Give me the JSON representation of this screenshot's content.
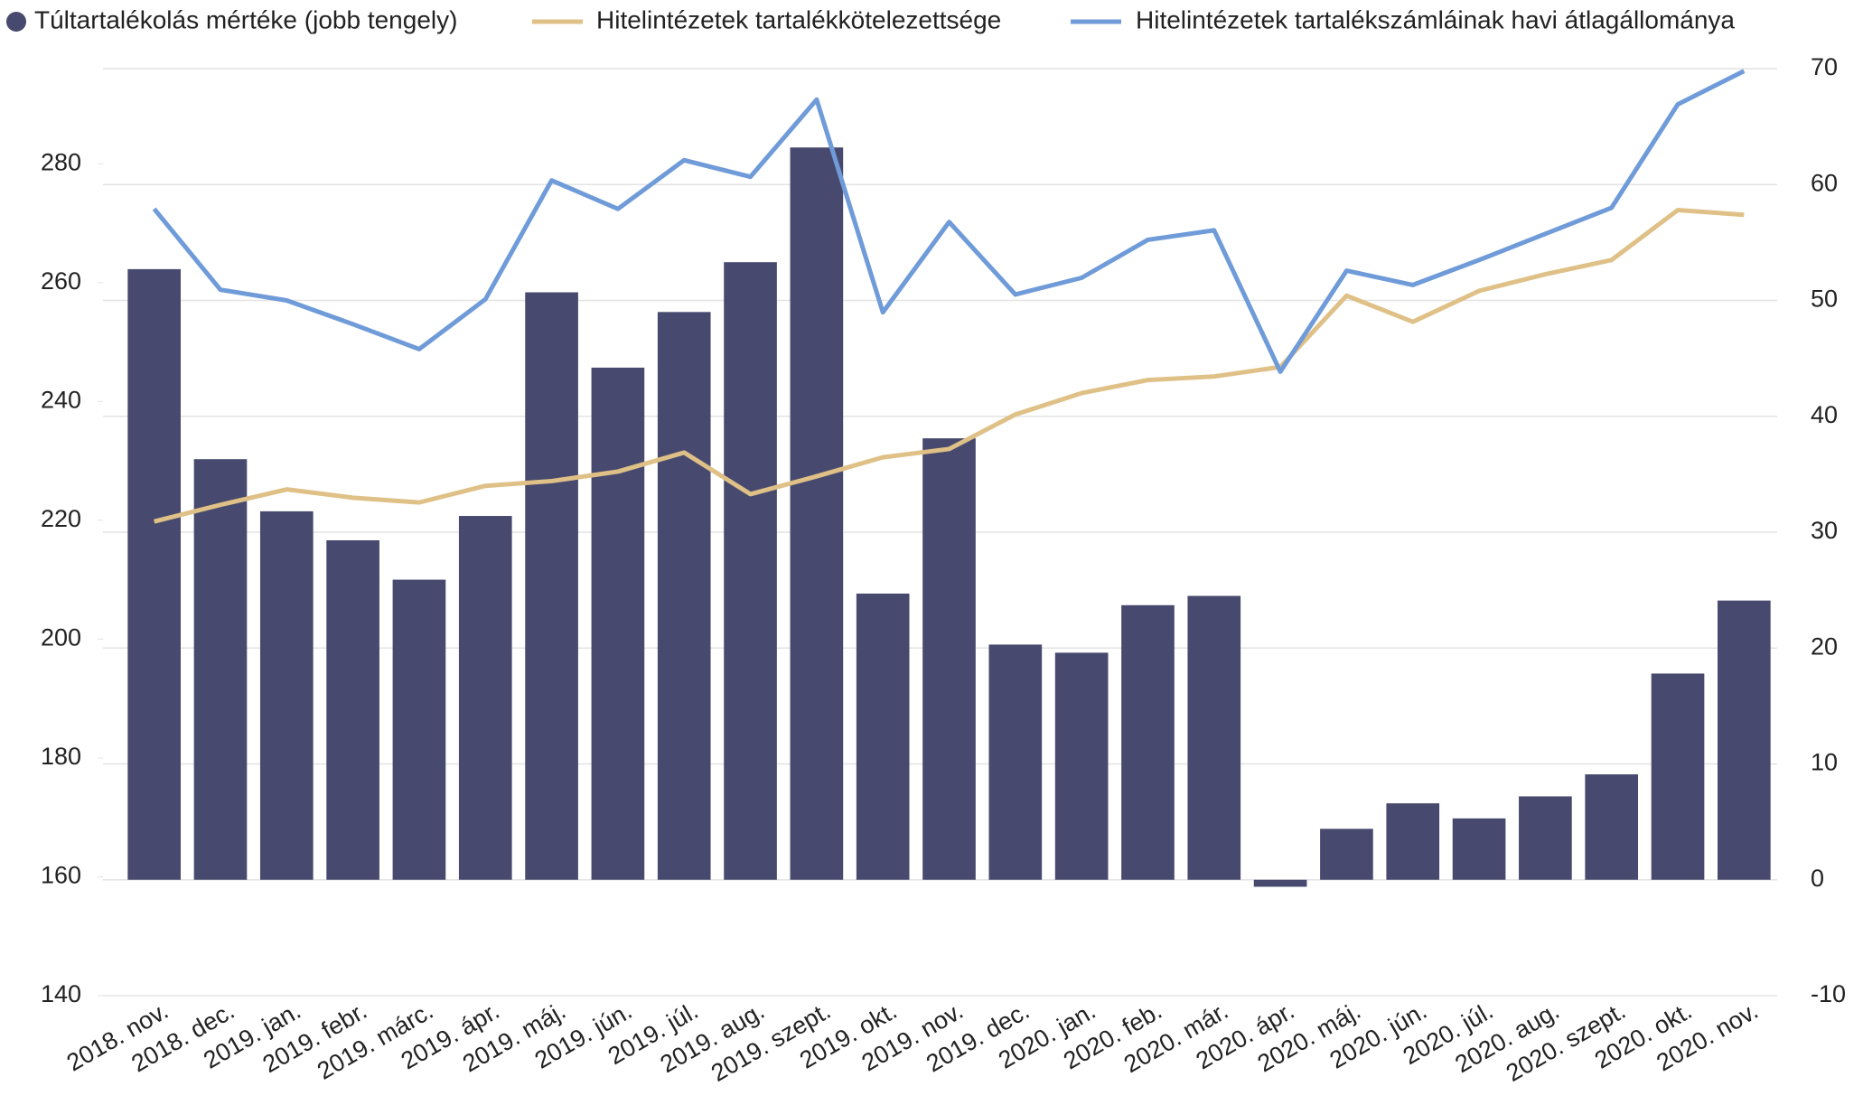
{
  "chart_data": {
    "type": "bar",
    "categories": [
      "2018. nov.",
      "2018. dec.",
      "2019. jan.",
      "2019. febr.",
      "2019. márc.",
      "2019. ápr.",
      "2019. máj.",
      "2019. jún.",
      "2019. júl.",
      "2019. aug.",
      "2019. szept.",
      "2019. okt.",
      "2019. nov.",
      "2019. dec.",
      "2020. jan.",
      "2020. feb.",
      "2020. már.",
      "2020. ápr.",
      "2020. máj.",
      "2020. jún.",
      "2020. júl.",
      "2020. aug.",
      "2020. szept.",
      "2020. okt.",
      "2020. nov."
    ],
    "series": [
      {
        "name": "Túltartalékolás mértéke (jobb tengely)",
        "type": "bar",
        "axis": "y2",
        "color": "#474a6e",
        "values": [
          52.7,
          36.3,
          31.8,
          29.3,
          25.9,
          31.4,
          50.7,
          44.2,
          49.0,
          53.3,
          63.2,
          24.7,
          38.1,
          20.3,
          19.6,
          23.7,
          24.5,
          -0.6,
          4.4,
          6.6,
          5.3,
          7.2,
          9.1,
          17.8,
          24.1
        ]
      },
      {
        "name": "Hitelintézetek tartalékkötelezettsége",
        "type": "line",
        "color": "#dfc187",
        "values": [
          219.8,
          222.6,
          225.2,
          223.8,
          223.0,
          225.8,
          226.6,
          228.2,
          231.4,
          224.4,
          227.4,
          230.6,
          232.0,
          237.8,
          241.4,
          243.6,
          244.2,
          245.8,
          257.8,
          253.4,
          258.6,
          261.4,
          263.8,
          272.2,
          271.4
        ]
      },
      {
        "name": "Hitelintézetek tartalékszámláinak havi átlagállománya",
        "type": "line",
        "color": "#6f9bd9",
        "values": [
          272.4,
          258.8,
          257.0,
          253.0,
          248.8,
          257.2,
          277.2,
          272.4,
          280.6,
          277.8,
          290.8,
          255.0,
          270.2,
          258.0,
          260.8,
          267.2,
          268.8,
          245.0,
          262.0,
          259.6,
          263.8,
          268.2,
          272.6,
          290.0,
          295.6
        ]
      }
    ],
    "ylim": [
      140,
      296
    ],
    "yticks": [
      140,
      160,
      180,
      200,
      220,
      240,
      260,
      280
    ],
    "y2lim": [
      -10,
      70
    ],
    "y2ticks": [
      -10,
      0,
      10,
      20,
      30,
      40,
      50,
      60,
      70
    ],
    "grid": true,
    "legend": "top"
  }
}
